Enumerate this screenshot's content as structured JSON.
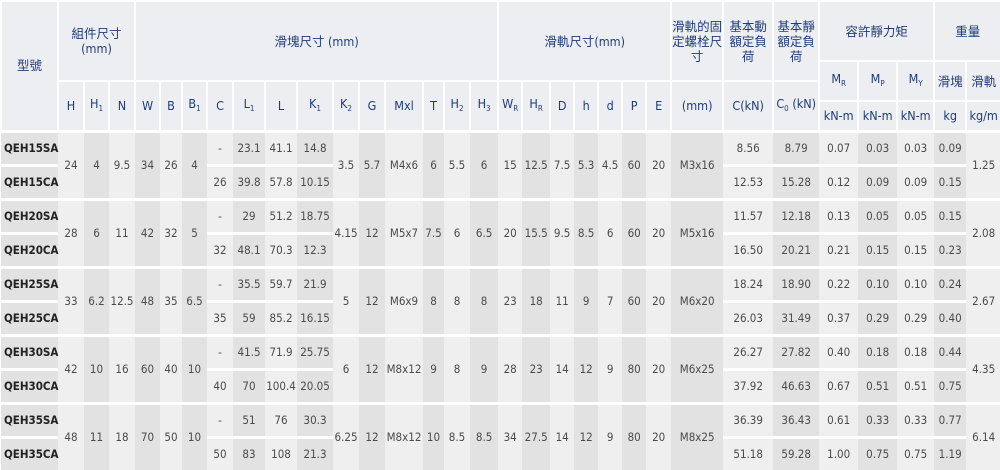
{
  "header": {
    "model": "型號",
    "assembly": "組件尺寸 (mm)",
    "block": "滑塊尺寸 (mm)",
    "rail": "滑軌尺寸(mm)",
    "bolt": "滑軌的固定螺栓尺寸",
    "dynamic": "基本動額定負荷",
    "static": "基本靜額定負荷",
    "moment": "容許靜力矩",
    "weight": "重量",
    "columns": [
      {
        "main": "H",
        "sub": ""
      },
      {
        "main": "H",
        "sub": "1"
      },
      {
        "main": "N",
        "sub": ""
      },
      {
        "main": "W",
        "sub": ""
      },
      {
        "main": "B",
        "sub": ""
      },
      {
        "main": "B",
        "sub": "1"
      },
      {
        "main": "C",
        "sub": ""
      },
      {
        "main": "L",
        "sub": "1"
      },
      {
        "main": "L",
        "sub": ""
      },
      {
        "main": "K",
        "sub": "1"
      },
      {
        "main": "K",
        "sub": "2"
      },
      {
        "main": "G",
        "sub": ""
      },
      {
        "main": "Mxl",
        "sub": ""
      },
      {
        "main": "T",
        "sub": ""
      },
      {
        "main": "H",
        "sub": "2"
      },
      {
        "main": "H",
        "sub": "3"
      },
      {
        "main": "W",
        "sub": "R"
      },
      {
        "main": "H",
        "sub": "R"
      },
      {
        "main": "D",
        "sub": ""
      },
      {
        "main": "h",
        "sub": ""
      },
      {
        "main": "d",
        "sub": ""
      },
      {
        "main": "P",
        "sub": ""
      },
      {
        "main": "E",
        "sub": ""
      },
      {
        "main": "(mm)",
        "sub": ""
      },
      {
        "main": "C(kN)",
        "sub": ""
      },
      {
        "main": "C",
        "sub": "0",
        "after": " (kN)"
      }
    ],
    "moments": [
      {
        "main": "M",
        "sub": "R"
      },
      {
        "main": "M",
        "sub": "P"
      },
      {
        "main": "M",
        "sub": "Y"
      }
    ],
    "moment_unit": "kN-m",
    "weight_cols": [
      {
        "label": "滑塊",
        "unit": "kg"
      },
      {
        "label": "滑軌",
        "unit": "kg/m"
      }
    ]
  },
  "groups": [
    {
      "H": "24",
      "H1": "4",
      "N": "9.5",
      "W": "34",
      "B": "26",
      "B1": "4",
      "K2": "3.5",
      "G": "5.7",
      "Mxl": "M4x6",
      "T": "6",
      "H2": "5.5",
      "H3": "6",
      "WR": "15",
      "HR": "12.5",
      "D": "7.5",
      "h": "5.3",
      "d": "4.5",
      "P": "60",
      "E": "20",
      "bolt": "M3x16",
      "rail_kg_m": "1.25",
      "rows": [
        {
          "model": "QEH15SA",
          "C": "-",
          "L1": "23.1",
          "L": "41.1",
          "K1": "14.8",
          "Cdyn": "8.56",
          "C0": "8.79",
          "MR": "0.07",
          "MP": "0.03",
          "MY": "0.03",
          "kg": "0.09"
        },
        {
          "model": "QEH15CA",
          "C": "26",
          "L1": "39.8",
          "L": "57.8",
          "K1": "10.15",
          "Cdyn": "12.53",
          "C0": "15.28",
          "MR": "0.12",
          "MP": "0.09",
          "MY": "0.09",
          "kg": "0.15"
        }
      ]
    },
    {
      "H": "28",
      "H1": "6",
      "N": "11",
      "W": "42",
      "B": "32",
      "B1": "5",
      "K2": "4.15",
      "G": "12",
      "Mxl": "M5x7",
      "T": "7.5",
      "H2": "6",
      "H3": "6.5",
      "WR": "20",
      "HR": "15.5",
      "D": "9.5",
      "h": "8.5",
      "d": "6",
      "P": "60",
      "E": "20",
      "bolt": "M5x16",
      "rail_kg_m": "2.08",
      "rows": [
        {
          "model": "QEH20SA",
          "C": "-",
          "L1": "29",
          "L": "51.2",
          "K1": "18.75",
          "Cdyn": "11.57",
          "C0": "12.18",
          "MR": "0.13",
          "MP": "0.05",
          "MY": "0.05",
          "kg": "0.15"
        },
        {
          "model": "QEH20CA",
          "C": "32",
          "L1": "48.1",
          "L": "70.3",
          "K1": "12.3",
          "Cdyn": "16.50",
          "C0": "20.21",
          "MR": "0.21",
          "MP": "0.15",
          "MY": "0.15",
          "kg": "0.23"
        }
      ]
    },
    {
      "H": "33",
      "H1": "6.2",
      "N": "12.5",
      "W": "48",
      "B": "35",
      "B1": "6.5",
      "K2": "5",
      "G": "12",
      "Mxl": "M6x9",
      "T": "8",
      "H2": "8",
      "H3": "8",
      "WR": "23",
      "HR": "18",
      "D": "11",
      "h": "9",
      "d": "7",
      "P": "60",
      "E": "20",
      "bolt": "M6x20",
      "rail_kg_m": "2.67",
      "rows": [
        {
          "model": "QEH25SA",
          "C": "-",
          "L1": "35.5",
          "L": "59.7",
          "K1": "21.9",
          "Cdyn": "18.24",
          "C0": "18.90",
          "MR": "0.22",
          "MP": "0.10",
          "MY": "0.10",
          "kg": "0.24"
        },
        {
          "model": "QEH25CA",
          "C": "35",
          "L1": "59",
          "L": "85.2",
          "K1": "16.15",
          "Cdyn": "26.03",
          "C0": "31.49",
          "MR": "0.37",
          "MP": "0.29",
          "MY": "0.29",
          "kg": "0.40"
        }
      ]
    },
    {
      "H": "42",
      "H1": "10",
      "N": "16",
      "W": "60",
      "B": "40",
      "B1": "10",
      "K2": "6",
      "G": "12",
      "Mxl": "M8x12",
      "T": "9",
      "H2": "8",
      "H3": "9",
      "WR": "28",
      "HR": "23",
      "D": "14",
      "h": "12",
      "d": "9",
      "P": "80",
      "E": "20",
      "bolt": "M6x25",
      "rail_kg_m": "4.35",
      "rows": [
        {
          "model": "QEH30SA",
          "C": "-",
          "L1": "41.5",
          "L": "71.9",
          "K1": "25.75",
          "Cdyn": "26.27",
          "C0": "27.82",
          "MR": "0.40",
          "MP": "0.18",
          "MY": "0.18",
          "kg": "0.44"
        },
        {
          "model": "QEH30CA",
          "C": "40",
          "L1": "70",
          "L": "100.4",
          "K1": "20.05",
          "Cdyn": "37.92",
          "C0": "46.63",
          "MR": "0.67",
          "MP": "0.51",
          "MY": "0.51",
          "kg": "0.75"
        }
      ]
    },
    {
      "H": "48",
      "H1": "11",
      "N": "18",
      "W": "70",
      "B": "50",
      "B1": "10",
      "K2": "6.25",
      "G": "12",
      "Mxl": "M8x12",
      "T": "10",
      "H2": "8.5",
      "H3": "8.5",
      "WR": "34",
      "HR": "27.5",
      "D": "14",
      "h": "12",
      "d": "9",
      "P": "80",
      "E": "20",
      "bolt": "M8x25",
      "rail_kg_m": "6.14",
      "rows": [
        {
          "model": "QEH35SA",
          "C": "-",
          "L1": "51",
          "L": "76",
          "K1": "30.3",
          "Cdyn": "36.39",
          "C0": "36.43",
          "MR": "0.61",
          "MP": "0.33",
          "MY": "0.33",
          "kg": "0.77"
        },
        {
          "model": "QEH35CA",
          "C": "50",
          "L1": "83",
          "L": "108",
          "K1": "21.3",
          "Cdyn": "51.18",
          "C0": "59.28",
          "MR": "1.00",
          "MP": "0.75",
          "MY": "0.75",
          "kg": "1.19"
        }
      ]
    }
  ]
}
